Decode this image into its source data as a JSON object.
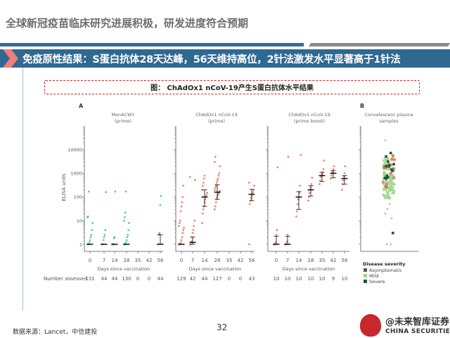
{
  "page": {
    "title": "全球新冠疫苗临床研究进展积极，研发进度符合预期",
    "banner": "免疫原性结果：S蛋白抗体28天达峰，56天维持高位，2针法激发水平显著高于1针法",
    "figure_caption": "图： ChAdOx1 nCoV-19产生S蛋白抗体水平结果",
    "source": "数据来源：Lancet，中信建投",
    "page_number": "32",
    "logo": {
      "cn": "@未来智库证券",
      "en": "CHINA SECURITIES"
    },
    "colors": {
      "banner": "#2f6891",
      "accent_red": "#c0282d",
      "rule_gray": "#8a8a8a",
      "menacwy": "#2aa9c9",
      "chadox": "#e0634a",
      "mild": "#9fd48e",
      "severe": "#1e5a3a"
    }
  },
  "chart_data": [
    {
      "type": "scatter",
      "panel": "A",
      "title": "MenACWY\n(prime)",
      "title_lines": [
        "MenACWY",
        "(prime)"
      ],
      "xlabel": "Days since vaccination",
      "ylabel": "ELISA units",
      "yscale": "log",
      "ylim": [
        0.5,
        100000
      ],
      "yticks": [
        1,
        10,
        100,
        1000,
        10000
      ],
      "categories": [
        "0",
        "7",
        "14",
        "28",
        "35",
        "42",
        "56"
      ],
      "number_assessed": [
        "131",
        "44",
        "44",
        "130",
        "0",
        "0",
        "44"
      ],
      "medians": [
        1,
        1,
        1,
        1,
        null,
        null,
        1
      ],
      "iqr": [
        [
          1,
          1
        ],
        [
          1,
          1
        ],
        [
          1,
          1
        ],
        [
          1,
          1
        ],
        null,
        null,
        [
          1,
          2.5
        ]
      ],
      "points": {
        "0": [
          1,
          1,
          1,
          1.2,
          1.5,
          2,
          2.5,
          4,
          8,
          14,
          15,
          170
        ],
        "7": [
          1,
          1,
          1,
          1.5,
          2,
          2.5,
          4,
          160
        ],
        "14": [
          1,
          1,
          1,
          1.8,
          2,
          170
        ],
        "28": [
          1,
          1,
          1,
          1.2,
          1.5,
          2,
          2.5,
          4,
          8,
          10,
          14,
          22,
          170
        ],
        "56": [
          1,
          2.5,
          2.8,
          3,
          45,
          110
        ]
      },
      "color": "#2aa9c9"
    },
    {
      "type": "scatter",
      "panel": "A",
      "title_lines": [
        "ChAdOx1 nCoV-19",
        "(prime)"
      ],
      "xlabel": "Days since vaccination",
      "ylabel": "ELISA units",
      "yscale": "log",
      "ylim": [
        0.5,
        100000
      ],
      "categories": [
        "0",
        "7",
        "14",
        "28",
        "35",
        "42",
        "56"
      ],
      "number_assessed": [
        "129",
        "42",
        "44",
        "127",
        "0",
        "0",
        "43"
      ],
      "medians": [
        1,
        1.2,
        100,
        160,
        null,
        null,
        130
      ],
      "iqr": [
        [
          1,
          1
        ],
        [
          1,
          2
        ],
        [
          40,
          200
        ],
        [
          80,
          330
        ],
        null,
        null,
        [
          70,
          210
        ]
      ],
      "points": {
        "0": [
          1,
          1,
          1,
          1.2,
          1.5,
          2,
          3,
          4,
          5,
          6,
          8,
          10,
          25,
          40,
          60,
          100,
          300
        ],
        "7": [
          1,
          1,
          1.3,
          2,
          3,
          4,
          6,
          10,
          520,
          700
        ],
        "14": [
          8,
          20,
          30,
          40,
          60,
          80,
          100,
          120,
          150,
          200,
          300,
          400,
          600,
          800
        ],
        "28": [
          30,
          40,
          60,
          80,
          100,
          120,
          140,
          160,
          180,
          200,
          250,
          300,
          400,
          500,
          600,
          800,
          1000,
          2000,
          3000,
          5000
        ],
        "56": [
          1,
          50,
          70,
          90,
          110,
          130,
          160,
          200,
          300,
          400
        ]
      },
      "color": "#e0634a"
    },
    {
      "type": "scatter",
      "panel": "A",
      "title_lines": [
        "ChAdOx1 nCoV-19",
        "(prime boost)"
      ],
      "xlabel": "Days since vaccination",
      "yscale": "log",
      "ylim": [
        0.5,
        100000
      ],
      "categories": [
        "0",
        "7",
        "14",
        "28",
        "35",
        "42",
        "56"
      ],
      "number_assessed": [
        "10",
        "10",
        "10",
        "10",
        "10",
        "9",
        "10"
      ],
      "medians": [
        1,
        1,
        100,
        200,
        800,
        1000,
        600
      ],
      "iqr": [
        [
          1,
          2.2
        ],
        [
          1,
          2.2
        ],
        [
          30,
          170
        ],
        [
          110,
          300
        ],
        [
          450,
          1100
        ],
        [
          640,
          1300
        ],
        [
          350,
          800
        ]
      ],
      "points": {
        "0": [
          1,
          1,
          1,
          1.2,
          2.5,
          4,
          1800
        ],
        "7": [
          1,
          1,
          1,
          1.3,
          2.5,
          5000
        ],
        "14": [
          15,
          25,
          50,
          80,
          100,
          150,
          300,
          6000
        ],
        "28": [
          70,
          100,
          150,
          200,
          250,
          350,
          650
        ],
        "35": [
          350,
          500,
          700,
          800,
          900,
          1100,
          1500,
          3500
        ],
        "42": [
          600,
          800,
          1000,
          1200,
          1500,
          2000
        ],
        "56": [
          200,
          350,
          500,
          700,
          1000,
          2000
        ]
      },
      "color": "#e0634a"
    },
    {
      "type": "scatter",
      "panel": "B",
      "title_lines": [
        "Convalescent plasma",
        "samples"
      ],
      "yscale": "log",
      "ylim": [
        0.5,
        100000
      ],
      "legend": {
        "title": "Disease severity",
        "entries": [
          {
            "label": "Asymptomatic",
            "color": "#555555"
          },
          {
            "label": "Mild",
            "color": "#9fd48e"
          },
          {
            "label": "Severe",
            "color": "#1e5a3a"
          }
        ]
      },
      "points_range": [
        1,
        10000
      ],
      "approx_median": 600
    }
  ],
  "axis": {
    "ylabel": "ELISA units",
    "yticks": [
      "10000",
      "1000",
      "100",
      "10",
      "1"
    ],
    "xlabel": "Days since vaccination",
    "number_assessed_label": "Number assessed"
  }
}
